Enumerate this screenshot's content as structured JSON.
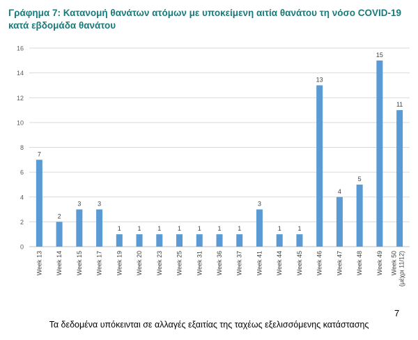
{
  "title": "Γράφημα 7: Κατανομή θανάτων ατόμων με υποκείμενη αιτία θανάτου τη νόσο COVID-19 κατά εβδομάδα θανάτου",
  "footnote": "Τα δεδομένα υπόκεινται σε αλλαγές εξαιτίας της ταχέως εξελισσόμενης κατάστασης",
  "page_number": "7",
  "chart_data": {
    "type": "bar",
    "title": "Γράφημα 7: Κατανομή θανάτων ατόμων με υποκείμενη αιτία θανάτου τη νόσο COVID-19 κατά εβδομάδα θανάτου",
    "xlabel": "",
    "ylabel": "",
    "ylim": [
      0,
      16
    ],
    "yticks": [
      0,
      2,
      4,
      6,
      8,
      10,
      12,
      14,
      16
    ],
    "grid": true,
    "bar_color": "#5b9bd5",
    "categories": [
      "Week 13",
      "Week 14",
      "Week 15",
      "Week 17",
      "Week 19",
      "Week 20",
      "Week 23",
      "Week 25",
      "Week 31",
      "Week 36",
      "Week 37",
      "Week 41",
      "Week 44",
      "Week 45",
      "Week 46",
      "Week 47",
      "Week 48",
      "Week 49",
      "Week 50 (μέχρι 11/12)"
    ],
    "values": [
      7,
      2,
      3,
      3,
      1,
      1,
      1,
      1,
      1,
      1,
      1,
      3,
      1,
      1,
      13,
      4,
      5,
      15,
      11
    ]
  }
}
